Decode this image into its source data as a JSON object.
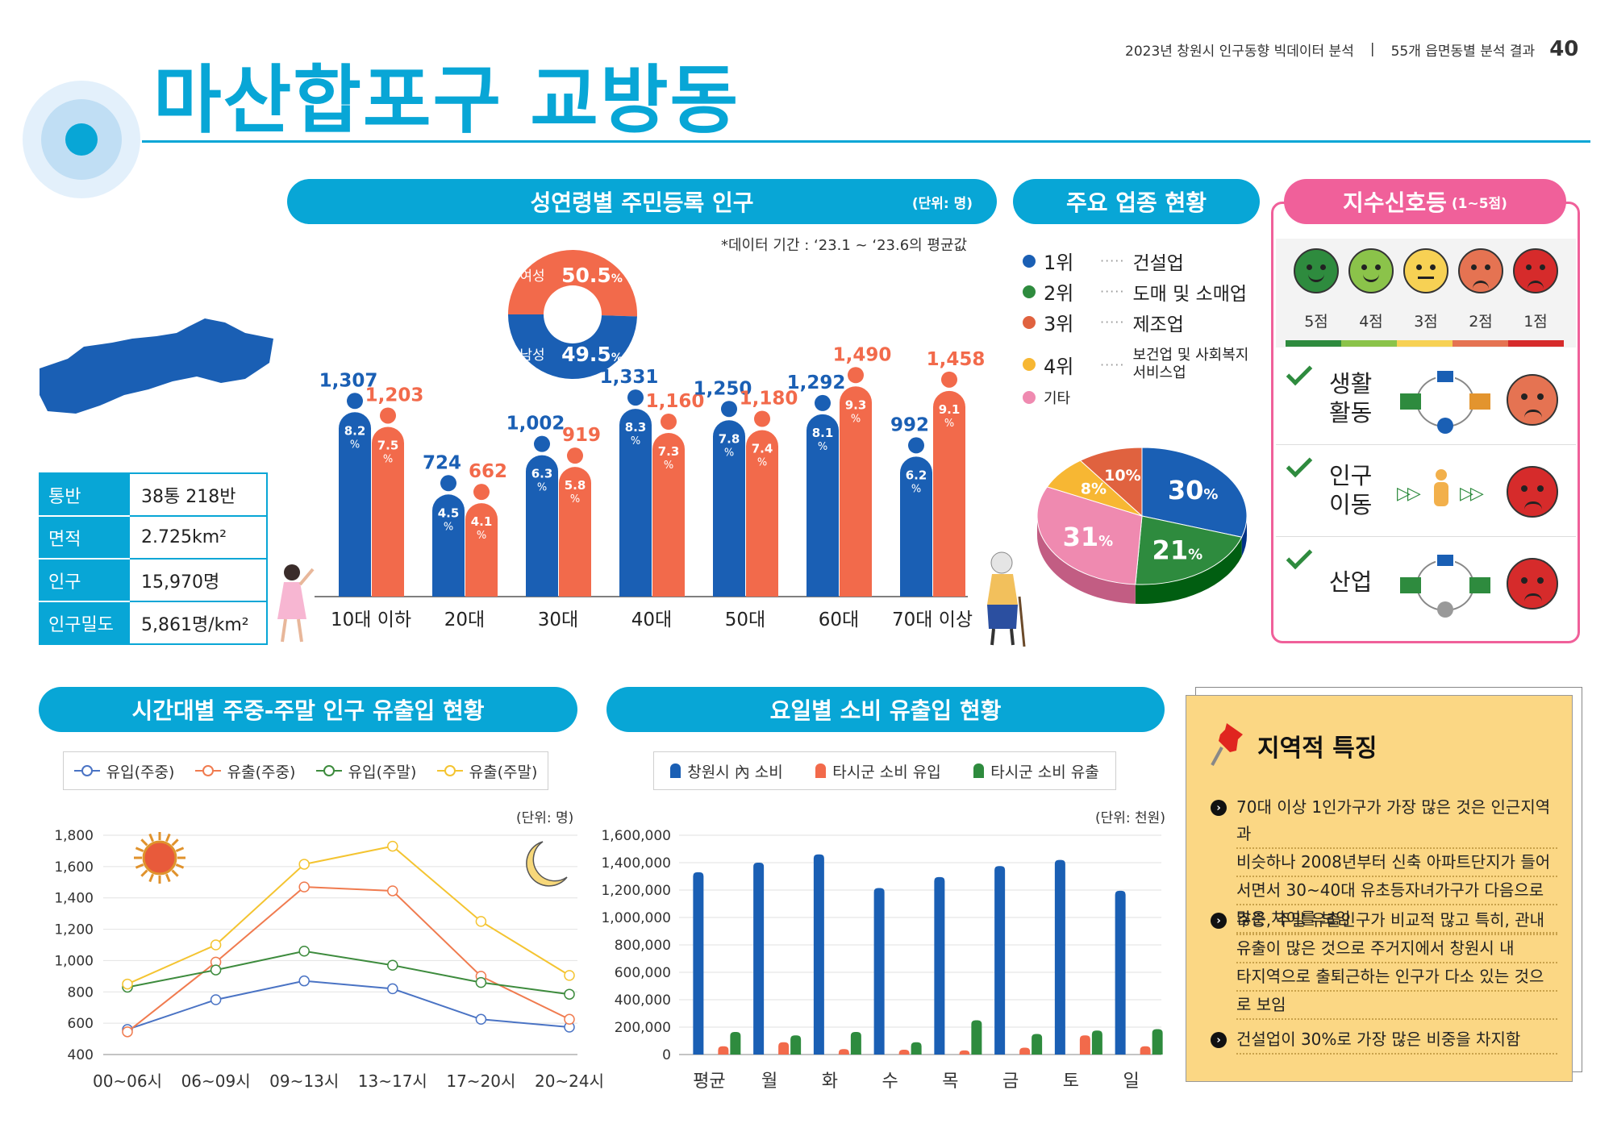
{
  "header": {
    "breadcrumb_left": "2023년 창원시 인구동향 빅데이터 분석",
    "separator": "|",
    "breadcrumb_right": "55개 읍면동별 분석 결과",
    "page_number": "40",
    "title": "마산합포구 교방동"
  },
  "info": {
    "rows": [
      {
        "key": "통반",
        "value": "38통 218반"
      },
      {
        "key": "면적",
        "value": "2.725km²"
      },
      {
        "key": "인구",
        "value": "15,970명"
      },
      {
        "key": "인구밀도",
        "value": "5,861명/km²"
      }
    ]
  },
  "population": {
    "title": "성연령별 주민등록 인구",
    "unit": "(단위: 명)",
    "period": "*데이터 기간 : ‘23.1 ~ ‘23.6의 평균값",
    "donut": {
      "female_label": "여성",
      "female_pct": "50.5",
      "male_label": "남성",
      "male_pct": "49.5",
      "pct_sign": "%"
    },
    "chart_data": {
      "type": "bar",
      "categories": [
        "10대 이하",
        "20대",
        "30대",
        "40대",
        "50대",
        "60대",
        "70대 이상"
      ],
      "series": [
        {
          "values": [
            1307,
            724,
            1002,
            1331,
            1250,
            1292,
            992
          ],
          "labels": [
            "1,307",
            "724",
            "1,002",
            "1,331",
            "1,250",
            "1,292",
            "992"
          ],
          "pct": [
            "8.2",
            "4.5",
            "6.3",
            "8.3",
            "7.8",
            "8.1",
            "6.2"
          ],
          "color": "#1a5fb4"
        },
        {
          "values": [
            1203,
            662,
            919,
            1160,
            1180,
            1490,
            1458
          ],
          "labels": [
            "1,203",
            "662",
            "919",
            "1,160",
            "1,180",
            "1,490",
            "1,458"
          ],
          "pct": [
            "7.5",
            "4.1",
            "5.8",
            "7.3",
            "7.4",
            "9.3",
            "9.1"
          ],
          "color": "#f26a4b"
        }
      ],
      "pct_sign": "%"
    }
  },
  "industry": {
    "title": "주요 업종 현황",
    "legend": [
      {
        "rank": "1위",
        "name": "건설업",
        "color": "#1a5fb4"
      },
      {
        "rank": "2위",
        "name": "도매 및 소매업",
        "color": "#2e8b3e"
      },
      {
        "rank": "3위",
        "name": "제조업",
        "color": "#e0623f"
      },
      {
        "rank": "4위",
        "name": "보건업 및 사회복지",
        "name2": "서비스업",
        "color": "#f7b733"
      },
      {
        "rank": "기타",
        "name": "",
        "color": "#ef8ab0"
      }
    ],
    "chart_data": {
      "type": "pie",
      "labels": [
        "건설업",
        "도매 및 소매업",
        "기타",
        "보건업 및 사회복지 서비스업",
        "제조업"
      ],
      "values": [
        30,
        21,
        31,
        8,
        10
      ],
      "value_labels": [
        "30",
        "21",
        "31",
        "8%",
        "10%"
      ],
      "colors": [
        "#1a5fb4",
        "#2e8b3e",
        "#ef8ab0",
        "#f7b733",
        "#e0623f"
      ],
      "pct_sign": "%"
    }
  },
  "signal": {
    "title": "지수신호등",
    "title_sub": "(1~5점)",
    "scores": [
      "5점",
      "4점",
      "3점",
      "2점",
      "1점"
    ],
    "score_colors": [
      "#2e8b3e",
      "#8bc34a",
      "#f7d154",
      "#e57352",
      "#d62b2b"
    ],
    "items": [
      {
        "label1": "생활",
        "label2": "활동",
        "color": "#e57352"
      },
      {
        "label1": "인구",
        "label2": "이동",
        "color": "#d62b2b"
      },
      {
        "label1": "산업",
        "label2": "",
        "color": "#d62b2b"
      }
    ]
  },
  "flow": {
    "title": "시간대별 주중-주말 인구 유출입 현황",
    "unit": "(단위: 명)",
    "chart_data": {
      "type": "line",
      "categories": [
        "00~06시",
        "06~09시",
        "09~13시",
        "13~17시",
        "17~20시",
        "20~24시"
      ],
      "ylim": [
        400,
        1800
      ],
      "yticks": [
        "400",
        "600",
        "800",
        "1,000",
        "1,200",
        "1,400",
        "1,600",
        "1,800"
      ],
      "series": [
        {
          "name": "유입(주중)",
          "color": "#4a73c4",
          "values": [
            560,
            750,
            870,
            820,
            625,
            575
          ]
        },
        {
          "name": "유출(주중)",
          "color": "#f07b4f",
          "values": [
            545,
            990,
            1470,
            1445,
            900,
            625
          ]
        },
        {
          "name": "유입(주말)",
          "color": "#3d8b3d",
          "values": [
            830,
            940,
            1060,
            970,
            860,
            785
          ]
        },
        {
          "name": "유출(주말)",
          "color": "#f4c431",
          "values": [
            850,
            1100,
            1615,
            1730,
            1250,
            905
          ]
        }
      ]
    }
  },
  "consumption": {
    "title": "요일별 소비 유출입 현황",
    "unit": "(단위: 천원)",
    "chart_data": {
      "type": "bar",
      "categories": [
        "평균",
        "월",
        "화",
        "수",
        "목",
        "금",
        "토",
        "일"
      ],
      "ylim": [
        0,
        1600000
      ],
      "yticks": [
        "0",
        "200,000",
        "400,000",
        "600,000",
        "800,000",
        "1,000,000",
        "1,200,000",
        "1,400,000",
        "1,600,000"
      ],
      "series": [
        {
          "name": "창원시 內 소비",
          "color": "#1a5fb4",
          "values": [
            1330000,
            1400000,
            1460000,
            1215000,
            1295000,
            1375000,
            1420000,
            1195000
          ]
        },
        {
          "name": "타시군 소비 유입",
          "color": "#f26a4b",
          "values": [
            60000,
            90000,
            40000,
            35000,
            30000,
            50000,
            140000,
            60000
          ]
        },
        {
          "name": "타시군 소비 유출",
          "color": "#2e8b3e",
          "values": [
            165000,
            140000,
            165000,
            90000,
            250000,
            150000,
            175000,
            185000
          ]
        }
      ]
    }
  },
  "features": {
    "title": "지역적 특징",
    "items": [
      {
        "lines": [
          "70대 이상 1인가구가 가장 많은 것은 인근지역과",
          "비슷하나 2008년부터 신축 아파트단지가 들어",
          "서면서 30~40대 유초등자녀가구가 다음으로",
          "많은 차이를 보임"
        ]
      },
      {
        "lines": [
          "주중, 주말 유출인구가 비교적 많고 특히, 관내",
          "유출이 많은 것으로 주거지에서 창원시 내",
          "타지역으로 출퇴근하는 인구가 다소 있는 것으",
          "로 보임"
        ]
      },
      {
        "lines": [
          "건설업이 30%로 가장 많은 비중을 차지함"
        ]
      }
    ]
  }
}
